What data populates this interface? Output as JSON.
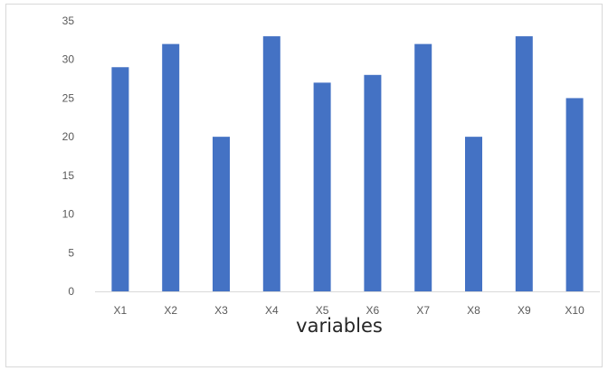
{
  "chart_data": {
    "type": "bar",
    "title": "",
    "xlabel": "variables",
    "ylabel": "",
    "categories": [
      "X1",
      "X2",
      "X3",
      "X4",
      "X5",
      "X6",
      "X7",
      "X8",
      "X9",
      "X10"
    ],
    "values": [
      29,
      32,
      20,
      33,
      27,
      28,
      32,
      20,
      33,
      25
    ],
    "ylim": [
      0,
      35
    ],
    "yticks": [
      "0",
      "5",
      "10",
      "15",
      "20",
      "25",
      "30",
      "35"
    ],
    "grid": false,
    "legend": "none",
    "bar_color": "#4472c4",
    "axis_color": "#d9d9d9",
    "tick_label_color": "#595959"
  }
}
